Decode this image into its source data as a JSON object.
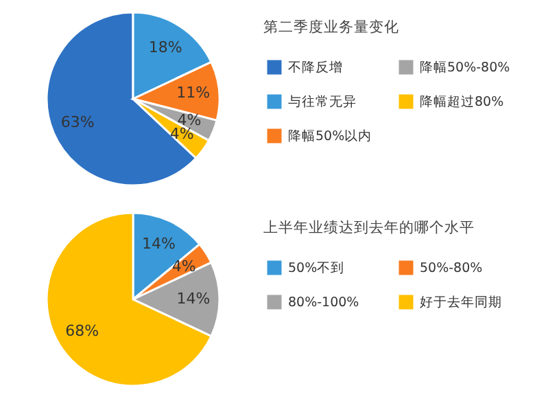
{
  "chart_data": [
    {
      "type": "pie",
      "title": "第二季度业务量变化",
      "categories": [
        "不降反增",
        "与往常无异",
        "降幅50%以内",
        "降幅50%-80%",
        "降幅超过80%"
      ],
      "values": [
        63,
        18,
        11,
        4,
        4
      ],
      "colors": [
        "#2e72c4",
        "#3a9ad9",
        "#f97b20",
        "#a5a5a5",
        "#ffc000"
      ],
      "value_labels": [
        "63%",
        "18%",
        "11%",
        "4%",
        "4%"
      ],
      "legend": "right"
    },
    {
      "type": "pie",
      "title": "上半年业绩达到去年的哪个水平",
      "categories": [
        "50%不到",
        "50%-80%",
        "80%-100%",
        "好于去年同期"
      ],
      "values": [
        14,
        4,
        14,
        68
      ],
      "colors": [
        "#3a9ad9",
        "#f97b20",
        "#a5a5a5",
        "#ffc000"
      ],
      "value_labels": [
        "14%",
        "4%",
        "14%",
        "68%"
      ],
      "legend": "right"
    }
  ]
}
